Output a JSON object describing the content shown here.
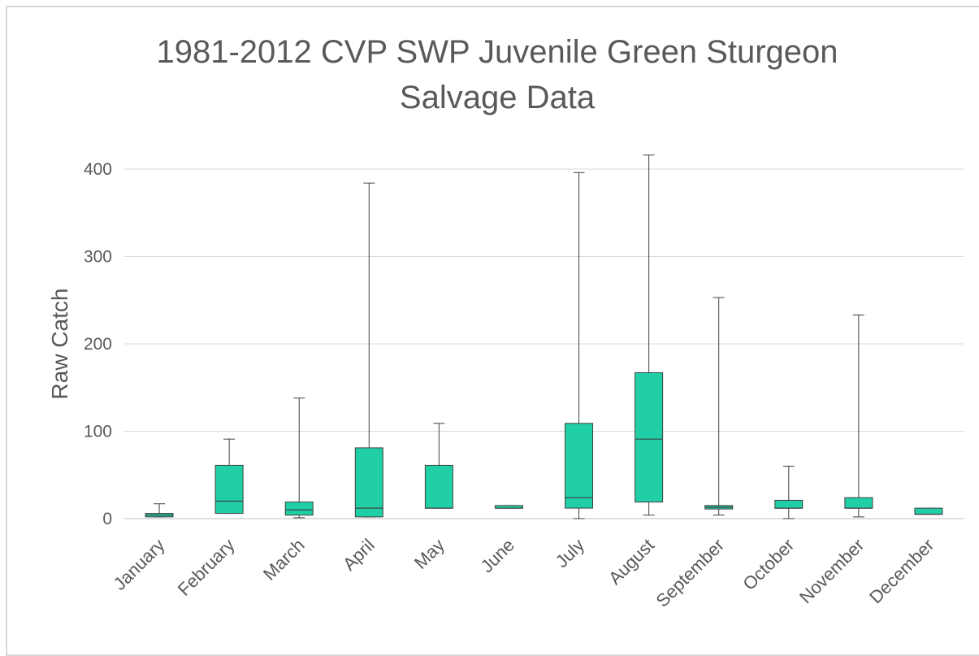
{
  "chart_data": {
    "type": "box",
    "title": [
      "1981-2012 CVP SWP Juvenile Green Sturgeon",
      "Salvage Data"
    ],
    "ylabel": "Raw Catch",
    "xlabel": "",
    "ylim": [
      0,
      400
    ],
    "yticks": [
      0,
      100,
      200,
      300,
      400
    ],
    "grid": true,
    "colors": {
      "box_fill": "#20cfa6",
      "stroke": "#404040",
      "gridline": "#d9d9d9",
      "text": "#595959"
    },
    "categories": [
      "January",
      "February",
      "March",
      "April",
      "May",
      "June",
      "July",
      "August",
      "September",
      "October",
      "November",
      "December"
    ],
    "boxes": [
      {
        "min": 2,
        "q1": 2,
        "median": 4,
        "q3": 6,
        "max": 17
      },
      {
        "min": 6,
        "q1": 6,
        "median": 20,
        "q3": 61,
        "max": 91
      },
      {
        "min": 1,
        "q1": 4,
        "median": 10,
        "q3": 19,
        "max": 138
      },
      {
        "min": 2,
        "q1": 2,
        "median": 12,
        "q3": 81,
        "max": 384
      },
      {
        "min": 12,
        "q1": 12,
        "median": 12,
        "q3": 61,
        "max": 109
      },
      {
        "min": 12,
        "q1": 12,
        "median": 12,
        "q3": 15,
        "max": 15
      },
      {
        "min": 0,
        "q1": 12,
        "median": 24,
        "q3": 109,
        "max": 396
      },
      {
        "min": 4,
        "q1": 19,
        "median": 91,
        "q3": 167,
        "max": 416
      },
      {
        "min": 4,
        "q1": 11,
        "median": 13,
        "q3": 15,
        "max": 253
      },
      {
        "min": 0,
        "q1": 12,
        "median": 12,
        "q3": 21,
        "max": 60
      },
      {
        "min": 2,
        "q1": 12,
        "median": 12,
        "q3": 24,
        "max": 233
      },
      {
        "min": 5,
        "q1": 5,
        "median": 5,
        "q3": 12,
        "max": 12
      }
    ]
  }
}
